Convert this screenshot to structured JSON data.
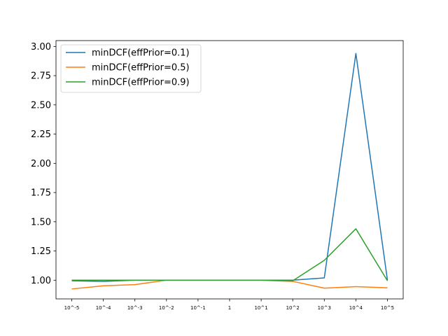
{
  "chart_data": {
    "type": "line",
    "title": "",
    "xlabel": "",
    "ylabel": "",
    "categories": [
      "10^-5",
      "10^-4",
      "10^-3",
      "10^-2",
      "10^-1",
      "1",
      "10^1",
      "10^2",
      "10^3",
      "10^4",
      "10^5"
    ],
    "ylim": [
      0.84,
      3.05
    ],
    "yticks": [
      "1.00",
      "1.25",
      "1.50",
      "1.75",
      "2.00",
      "2.25",
      "2.50",
      "2.75",
      "3.00"
    ],
    "grid": false,
    "legend_position": "top-left",
    "series": [
      {
        "name": "minDCF(effPrior=0.1)",
        "color": "#1f77b4",
        "values": [
          0.995,
          0.99,
          1.0,
          1.0,
          1.0,
          1.0,
          1.0,
          1.0,
          1.02,
          2.94,
          1.0
        ]
      },
      {
        "name": "minDCF(effPrior=0.5)",
        "color": "#ff7f0e",
        "values": [
          0.925,
          0.952,
          0.962,
          1.0,
          1.0,
          1.0,
          1.0,
          0.99,
          0.932,
          0.945,
          0.935
        ]
      },
      {
        "name": "minDCF(effPrior=0.9)",
        "color": "#2ca02c",
        "values": [
          1.0,
          1.0,
          1.0,
          1.0,
          1.0,
          1.0,
          1.0,
          0.995,
          1.17,
          1.44,
          0.995
        ]
      }
    ]
  }
}
